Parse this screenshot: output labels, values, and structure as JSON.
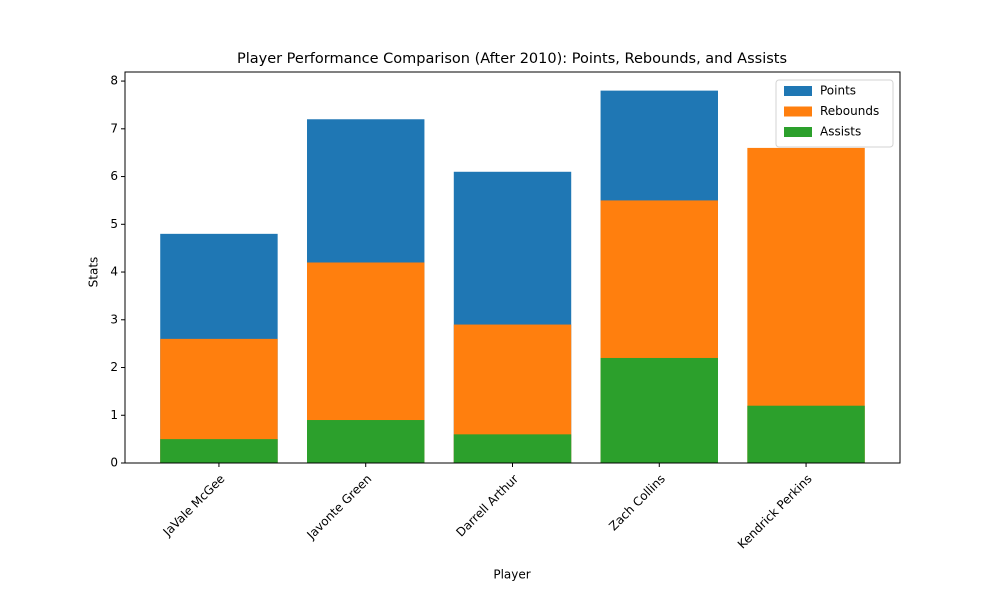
{
  "chart_data": {
    "type": "bar",
    "title": "Player Performance Comparison (After 2010): Points, Rebounds, and Assists",
    "x_label": "Player",
    "y_label": "Stats",
    "categories": [
      "JaVale McGee",
      "Javonte Green",
      "Darrell Arthur",
      "Zach Collins",
      "Kendrick Perkins"
    ],
    "series": [
      {
        "name": "Points",
        "color": "#1f77b4",
        "values": [
          4.8,
          7.2,
          6.1,
          7.8,
          null
        ]
      },
      {
        "name": "Rebounds",
        "color": "#ff7f0e",
        "values": [
          2.6,
          4.2,
          2.9,
          5.5,
          6.6
        ]
      },
      {
        "name": "Assists",
        "color": "#2ca02c",
        "values": [
          0.5,
          0.9,
          0.6,
          2.2,
          1.2
        ]
      }
    ],
    "ylim": [
      0,
      8.19
    ],
    "yticks": [
      0,
      1,
      2,
      3,
      4,
      5,
      6,
      7,
      8
    ],
    "grid": false,
    "legend": "upper right"
  }
}
